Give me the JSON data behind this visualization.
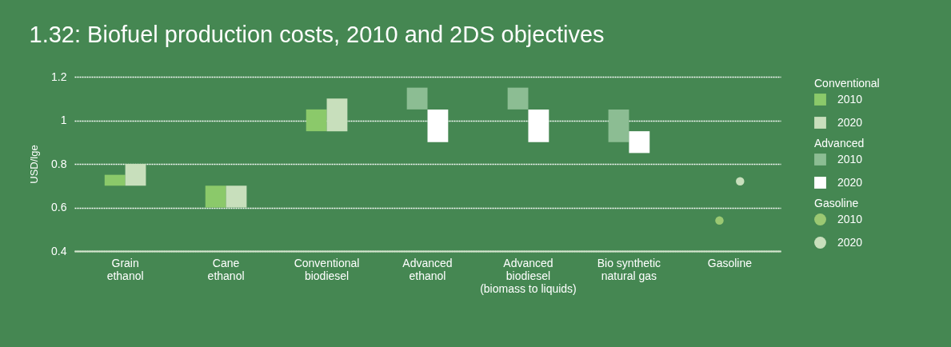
{
  "chart_data": {
    "type": "bar",
    "title": "1.32:  Biofuel production costs, 2010 and 2DS objectives",
    "ylabel": "USD/lge",
    "categories": [
      "Grain\nethanol",
      "Cane\nethanol",
      "Conventional\nbiodiesel",
      "Advanced\nethanol",
      "Advanced\nbiodiesel\n(biomass to liquids)",
      "Bio synthetic\nnatural gas",
      "Gasoline"
    ],
    "series": [
      {
        "name": "2010",
        "color": "#8bc96a",
        "values": [
          0.05,
          0.1,
          0.1,
          null,
          null,
          null,
          null
        ],
        "base": [
          0.7,
          0.6,
          0.95,
          null,
          null,
          null,
          null
        ]
      },
      {
        "name": "2020",
        "color": "#c8dfbc",
        "values": [
          0.1,
          0.1,
          0.15,
          null,
          null,
          null,
          null
        ],
        "base": [
          0.7,
          0.6,
          0.95,
          null,
          null,
          null,
          null
        ]
      },
      {
        "name": "2010",
        "color": "#8cbd93",
        "values": [
          null,
          null,
          null,
          0.1,
          0.1,
          0.15,
          null
        ],
        "base": [
          null,
          null,
          null,
          1.05,
          1.05,
          0.9,
          null
        ]
      },
      {
        "name": "2020",
        "color": "#ffffff",
        "values": [
          null,
          null,
          null,
          0.15,
          0.15,
          0.1,
          null
        ],
        "base": [
          null,
          null,
          null,
          0.9,
          0.9,
          0.85,
          null
        ]
      },
      {
        "name": "2010",
        "type": "scatter",
        "color": "#9bc872",
        "values": [
          null,
          null,
          null,
          null,
          null,
          null,
          0.54
        ]
      },
      {
        "name": "2020",
        "type": "scatter",
        "color": "#c8dfbc",
        "values": [
          null,
          null,
          null,
          null,
          null,
          null,
          0.72
        ]
      }
    ],
    "annotations": [
      "Conventional",
      "Advanced",
      "Gasoline"
    ],
    "ylim": [
      0.4,
      1.2
    ],
    "yticks": [
      0.4,
      0.6,
      0.8,
      {
        "value": 1,
        "label": "1"
      },
      1.2
    ],
    "grid": "y",
    "legend": "right",
    "marker": "circle"
  }
}
